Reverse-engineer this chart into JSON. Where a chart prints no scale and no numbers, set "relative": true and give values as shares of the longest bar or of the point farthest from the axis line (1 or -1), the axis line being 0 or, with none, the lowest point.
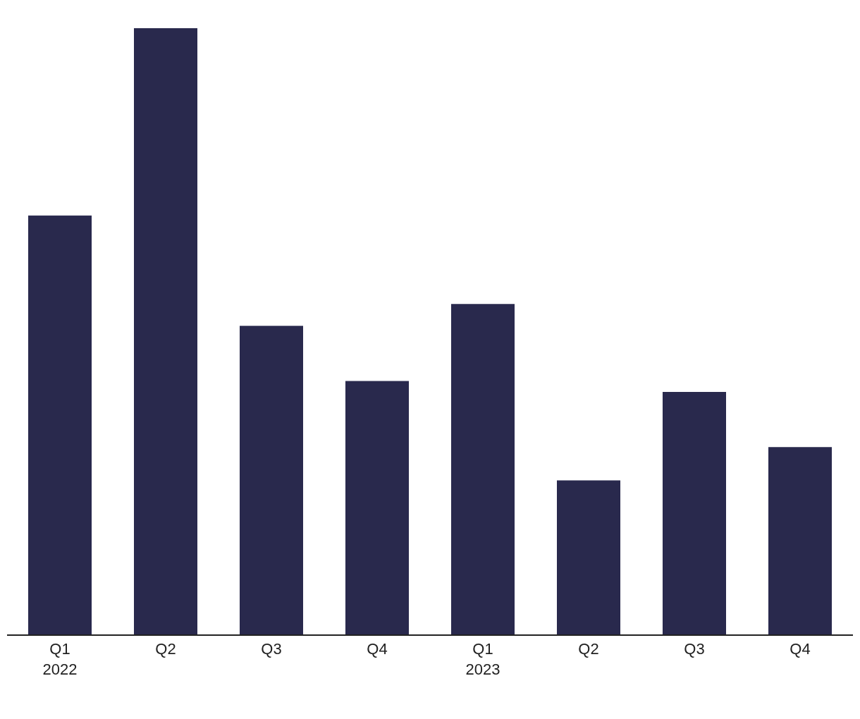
{
  "chart_data": {
    "type": "bar",
    "relative": true,
    "categories": [
      "Q1\n2022",
      "Q2",
      "Q3",
      "Q4",
      "Q1\n2023",
      "Q2",
      "Q3",
      "Q4"
    ],
    "values": [
      0.691,
      1,
      0.509,
      0.418,
      0.545,
      0.254,
      0.4,
      0.309
    ],
    "color": "#29294d"
  }
}
